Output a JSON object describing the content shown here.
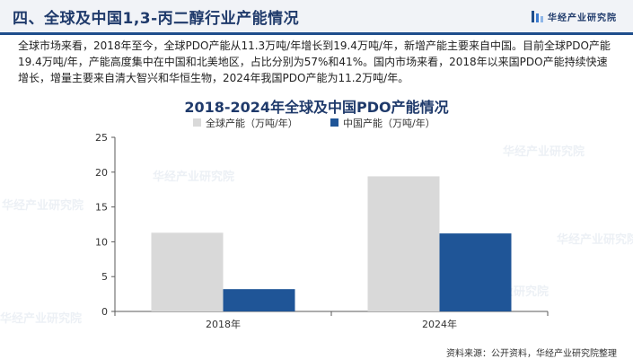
{
  "header": {
    "title": "四、全球及中国1,3-丙二醇行业产能情况",
    "logo_text": "华经产业研究院",
    "logo_icon": "bars-logo-icon",
    "accent_color": "#1f4e8c"
  },
  "intro_text": "全球市场来看，2018年至今，全球PDO产能从11.3万吨/年增长到19.4万吨/年，新增产能主要来自中国。目前全球PDO产能19.4万吨/年，产能高度集中在中国和北美地区，占比分别为57%和41%。国内市场来看，2018年以来国PDO产能持续快速增长，增量主要来自清大智兴和华恒生物，2024年我国PDO产能为11.2万吨/年。",
  "watermark_text": "华经产业研究院",
  "source_text": "资料来源：公开资料，华经产业研究院整理",
  "chart_data": {
    "type": "bar",
    "title": "2018-2024年全球及中国PDO产能情况",
    "categories": [
      "2018年",
      "2024年"
    ],
    "series": [
      {
        "name": "全球产能（万吨/年）",
        "values": [
          11.3,
          19.4
        ],
        "color": "#d9d9d9"
      },
      {
        "name": "中国产能（万吨/年）",
        "values": [
          3.2,
          11.2
        ],
        "color": "#1f5597"
      }
    ],
    "ylim": [
      0,
      25
    ],
    "yticks": [
      0,
      5,
      10,
      15,
      20,
      25
    ],
    "grid": false,
    "legend": "top-center"
  }
}
